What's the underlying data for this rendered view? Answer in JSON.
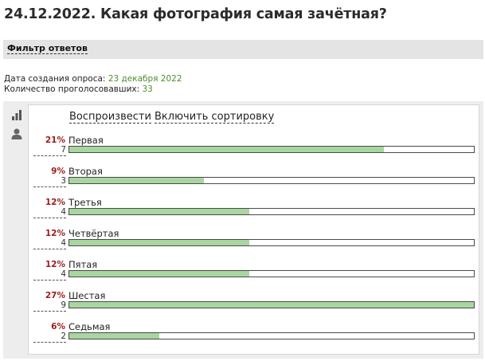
{
  "page": {
    "title": "24.12.2022. Какая фотография самая зачётная?"
  },
  "filter": {
    "label": "Фильтр ответов"
  },
  "meta": {
    "created_label": "Дата создания опроса: ",
    "created_value": "23 декабря 2022",
    "voters_label": "Количество проголосовавших: ",
    "voters_value": "33"
  },
  "sidebar": {
    "icons": [
      "bar-chart-icon",
      "user-icon"
    ]
  },
  "actions": {
    "play": "Воспроизвести",
    "sort": "Включить сортировку"
  },
  "colors": {
    "bar_fill": "#a8d5a0",
    "percent": "#9a1c1c",
    "value_green": "#4d8c2e"
  },
  "results": [
    {
      "label": "Первая",
      "percent": "21%",
      "votes": "7",
      "fraction": 0.7778
    },
    {
      "label": "Вторая",
      "percent": "9%",
      "votes": "3",
      "fraction": 0.3333
    },
    {
      "label": "Третья",
      "percent": "12%",
      "votes": "4",
      "fraction": 0.4444
    },
    {
      "label": "Четвёртая",
      "percent": "12%",
      "votes": "4",
      "fraction": 0.4444
    },
    {
      "label": "Пятая",
      "percent": "12%",
      "votes": "4",
      "fraction": 0.4444
    },
    {
      "label": "Шестая",
      "percent": "27%",
      "votes": "9",
      "fraction": 1.0
    },
    {
      "label": "Седьмая",
      "percent": "6%",
      "votes": "2",
      "fraction": 0.2222
    }
  ]
}
